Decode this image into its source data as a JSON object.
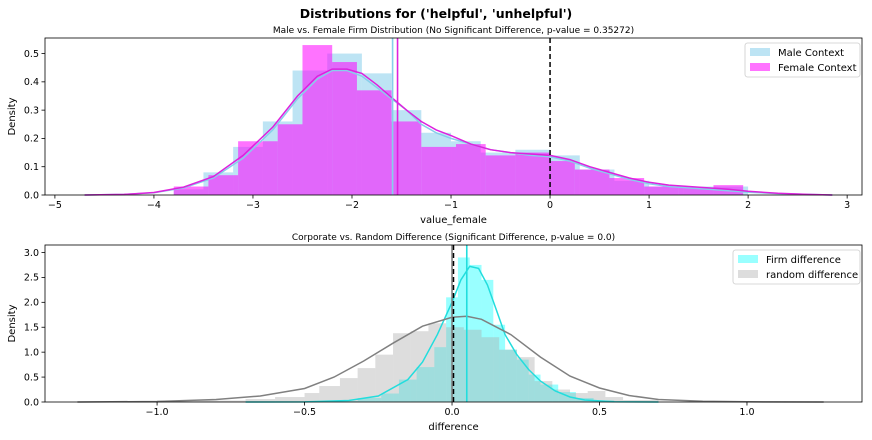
{
  "figure": {
    "suptitle": "Distributions for ('helpful', 'unhelpful')"
  },
  "chart_data": [
    {
      "type": "histogram",
      "title": "Male vs. Female Firm Distribution (No Significant Difference, p-value = 0.35272)",
      "xlabel": "value_female",
      "ylabel": "Density",
      "xlim": [
        -5.1,
        3.15
      ],
      "ylim": [
        0,
        0.555
      ],
      "xticks": [
        -5,
        -4,
        -3,
        -2,
        -1,
        0,
        1,
        2,
        3
      ],
      "xtick_labels": [
        "−5",
        "−4",
        "−3",
        "−2",
        "−1",
        "0",
        "1",
        "2",
        "3"
      ],
      "yticks": [
        0.0,
        0.1,
        0.2,
        0.3,
        0.4,
        0.5
      ],
      "ytick_labels": [
        "0.0",
        "0.1",
        "0.2",
        "0.3",
        "0.4",
        "0.5"
      ],
      "grid": false,
      "legend_position": "top-right",
      "series": [
        {
          "name": "Male Context",
          "color": "#87ceeb",
          "kde_color": "#87ceeb",
          "bins": [
            [
              -3.8,
              -3.5,
              0.02
            ],
            [
              -3.5,
              -3.2,
              0.08
            ],
            [
              -3.2,
              -2.9,
              0.17
            ],
            [
              -2.9,
              -2.6,
              0.26
            ],
            [
              -2.6,
              -2.25,
              0.44
            ],
            [
              -2.25,
              -1.9,
              0.5
            ],
            [
              -1.9,
              -1.6,
              0.43
            ],
            [
              -1.6,
              -1.3,
              0.3
            ],
            [
              -1.3,
              -1.0,
              0.22
            ],
            [
              -1.0,
              -0.7,
              0.19
            ],
            [
              -0.7,
              -0.35,
              0.15
            ],
            [
              -0.35,
              0.0,
              0.16
            ],
            [
              0.0,
              0.3,
              0.14
            ],
            [
              0.3,
              0.65,
              0.09
            ],
            [
              0.65,
              1.0,
              0.05
            ],
            [
              1.0,
              1.35,
              0.03
            ],
            [
              1.35,
              1.65,
              0.03
            ],
            [
              1.65,
              2.0,
              0.03
            ]
          ],
          "kde": [
            [
              -4.7,
              0.0
            ],
            [
              -4.3,
              0.002
            ],
            [
              -4.0,
              0.008
            ],
            [
              -3.7,
              0.025
            ],
            [
              -3.4,
              0.06
            ],
            [
              -3.1,
              0.13
            ],
            [
              -2.8,
              0.23
            ],
            [
              -2.55,
              0.34
            ],
            [
              -2.35,
              0.41
            ],
            [
              -2.2,
              0.44
            ],
            [
              -2.05,
              0.44
            ],
            [
              -1.9,
              0.42
            ],
            [
              -1.75,
              0.38
            ],
            [
              -1.6,
              0.34
            ],
            [
              -1.45,
              0.3
            ],
            [
              -1.3,
              0.25
            ],
            [
              -1.15,
              0.22
            ],
            [
              -1.0,
              0.2
            ],
            [
              -0.8,
              0.18
            ],
            [
              -0.6,
              0.16
            ],
            [
              -0.4,
              0.15
            ],
            [
              -0.2,
              0.14
            ],
            [
              0.0,
              0.135
            ],
            [
              0.2,
              0.12
            ],
            [
              0.4,
              0.095
            ],
            [
              0.6,
              0.075
            ],
            [
              0.8,
              0.055
            ],
            [
              1.0,
              0.04
            ],
            [
              1.2,
              0.03
            ],
            [
              1.4,
              0.025
            ],
            [
              1.6,
              0.02
            ],
            [
              1.8,
              0.015
            ],
            [
              2.0,
              0.01
            ],
            [
              2.3,
              0.005
            ],
            [
              2.6,
              0.002
            ],
            [
              2.85,
              0.0
            ]
          ],
          "mean": -1.59
        },
        {
          "name": "Female Context",
          "color": "#ff00ff",
          "kde_color": "#dd22dd",
          "bins": [
            [
              -3.8,
              -3.45,
              0.03
            ],
            [
              -3.45,
              -3.15,
              0.07
            ],
            [
              -3.15,
              -2.75,
              0.19
            ],
            [
              -2.75,
              -2.5,
              0.25
            ],
            [
              -2.5,
              -2.2,
              0.53
            ],
            [
              -2.2,
              -1.95,
              0.47
            ],
            [
              -1.95,
              -1.6,
              0.37
            ],
            [
              -1.6,
              -1.3,
              0.26
            ],
            [
              -1.3,
              -0.95,
              0.17
            ],
            [
              -0.95,
              -0.65,
              0.18
            ],
            [
              -0.65,
              -0.35,
              0.14
            ],
            [
              -0.35,
              0.0,
              0.15
            ],
            [
              0.0,
              0.25,
              0.12
            ],
            [
              0.25,
              0.6,
              0.09
            ],
            [
              0.6,
              0.95,
              0.06
            ],
            [
              0.95,
              1.3,
              0.03
            ],
            [
              1.3,
              1.65,
              0.025
            ],
            [
              1.65,
              1.95,
              0.035
            ]
          ],
          "kde": [
            [
              -4.7,
              0.0
            ],
            [
              -4.3,
              0.002
            ],
            [
              -4.0,
              0.009
            ],
            [
              -3.7,
              0.028
            ],
            [
              -3.4,
              0.065
            ],
            [
              -3.1,
              0.14
            ],
            [
              -2.8,
              0.24
            ],
            [
              -2.55,
              0.35
            ],
            [
              -2.35,
              0.42
            ],
            [
              -2.2,
              0.445
            ],
            [
              -2.05,
              0.445
            ],
            [
              -1.9,
              0.43
            ],
            [
              -1.75,
              0.39
            ],
            [
              -1.6,
              0.345
            ],
            [
              -1.45,
              0.3
            ],
            [
              -1.3,
              0.26
            ],
            [
              -1.15,
              0.23
            ],
            [
              -1.0,
              0.21
            ],
            [
              -0.8,
              0.18
            ],
            [
              -0.6,
              0.16
            ],
            [
              -0.4,
              0.15
            ],
            [
              -0.2,
              0.145
            ],
            [
              0.0,
              0.14
            ],
            [
              0.2,
              0.125
            ],
            [
              0.4,
              0.1
            ],
            [
              0.6,
              0.08
            ],
            [
              0.8,
              0.06
            ],
            [
              1.0,
              0.045
            ],
            [
              1.2,
              0.035
            ],
            [
              1.4,
              0.03
            ],
            [
              1.6,
              0.025
            ],
            [
              1.8,
              0.02
            ],
            [
              2.0,
              0.013
            ],
            [
              2.3,
              0.006
            ],
            [
              2.6,
              0.002
            ],
            [
              2.85,
              0.0
            ]
          ],
          "mean": -1.54
        }
      ],
      "reference_line": {
        "x": 0,
        "style": "dashed",
        "color": "#000000"
      }
    },
    {
      "type": "histogram",
      "title": "Corporate vs. Random Difference (Significant Difference, p-value = 0.0)",
      "xlabel": "difference",
      "ylabel": "Density",
      "xlim": [
        -1.38,
        1.39
      ],
      "ylim": [
        0,
        3.15
      ],
      "xticks": [
        -1.0,
        -0.5,
        0.0,
        0.5,
        1.0
      ],
      "xtick_labels": [
        "−1.0",
        "−0.5",
        "0.0",
        "0.5",
        "1.0"
      ],
      "yticks": [
        0.0,
        0.5,
        1.0,
        1.5,
        2.0,
        2.5,
        3.0
      ],
      "ytick_labels": [
        "0.0",
        "0.5",
        "1.0",
        "1.5",
        "2.0",
        "2.5",
        "3.0"
      ],
      "grid": false,
      "legend_position": "top-right",
      "series": [
        {
          "name": "Firm difference",
          "color": "#00ffff",
          "kde_color": "#22dddd",
          "bins": [
            [
              -0.4,
              -0.32,
              0.02
            ],
            [
              -0.32,
              -0.24,
              0.08
            ],
            [
              -0.24,
              -0.18,
              0.17
            ],
            [
              -0.18,
              -0.12,
              0.45
            ],
            [
              -0.12,
              -0.06,
              0.7
            ],
            [
              -0.06,
              -0.02,
              1.1
            ],
            [
              -0.02,
              0.02,
              2.1
            ],
            [
              0.02,
              0.06,
              2.9
            ],
            [
              0.06,
              0.1,
              2.75
            ],
            [
              0.1,
              0.14,
              2.45
            ],
            [
              0.14,
              0.18,
              1.55
            ],
            [
              0.18,
              0.22,
              1.05
            ],
            [
              0.22,
              0.26,
              0.85
            ],
            [
              0.26,
              0.3,
              0.55
            ],
            [
              0.3,
              0.36,
              0.35
            ],
            [
              0.36,
              0.42,
              0.2
            ],
            [
              0.42,
              0.48,
              0.08
            ],
            [
              0.48,
              0.55,
              0.03
            ]
          ],
          "kde": [
            [
              -0.7,
              0.0
            ],
            [
              -0.5,
              0.003
            ],
            [
              -0.35,
              0.03
            ],
            [
              -0.25,
              0.12
            ],
            [
              -0.15,
              0.45
            ],
            [
              -0.1,
              0.8
            ],
            [
              -0.05,
              1.35
            ],
            [
              0.0,
              2.0
            ],
            [
              0.03,
              2.45
            ],
            [
              0.06,
              2.72
            ],
            [
              0.09,
              2.68
            ],
            [
              0.12,
              2.35
            ],
            [
              0.15,
              1.85
            ],
            [
              0.18,
              1.35
            ],
            [
              0.22,
              0.95
            ],
            [
              0.26,
              0.65
            ],
            [
              0.3,
              0.42
            ],
            [
              0.35,
              0.22
            ],
            [
              0.4,
              0.1
            ],
            [
              0.45,
              0.04
            ],
            [
              0.55,
              0.005
            ],
            [
              0.7,
              0.0
            ]
          ],
          "mean_line_x": 0.05
        },
        {
          "name": "random difference",
          "color": "#aaaaaa",
          "kde_color": "#808080",
          "bins": [
            [
              -1.0,
              -0.7,
              0.03
            ],
            [
              -0.7,
              -0.6,
              0.06
            ],
            [
              -0.6,
              -0.5,
              0.1
            ],
            [
              -0.5,
              -0.45,
              0.18
            ],
            [
              -0.45,
              -0.38,
              0.32
            ],
            [
              -0.38,
              -0.32,
              0.48
            ],
            [
              -0.32,
              -0.26,
              0.68
            ],
            [
              -0.26,
              -0.2,
              0.95
            ],
            [
              -0.2,
              -0.14,
              1.38
            ],
            [
              -0.14,
              -0.08,
              1.42
            ],
            [
              -0.08,
              -0.02,
              1.58
            ],
            [
              -0.02,
              0.04,
              1.5
            ],
            [
              0.04,
              0.1,
              1.45
            ],
            [
              0.1,
              0.16,
              1.3
            ],
            [
              0.16,
              0.22,
              1.05
            ],
            [
              0.22,
              0.28,
              0.9
            ],
            [
              0.28,
              0.34,
              0.42
            ],
            [
              0.34,
              0.4,
              0.25
            ],
            [
              0.4,
              0.46,
              0.18
            ],
            [
              0.46,
              0.52,
              0.22
            ],
            [
              0.52,
              0.58,
              0.1
            ],
            [
              0.58,
              0.7,
              0.04
            ]
          ],
          "kde": [
            [
              -1.27,
              0.0
            ],
            [
              -1.0,
              0.01
            ],
            [
              -0.8,
              0.05
            ],
            [
              -0.65,
              0.12
            ],
            [
              -0.5,
              0.27
            ],
            [
              -0.4,
              0.5
            ],
            [
              -0.3,
              0.82
            ],
            [
              -0.2,
              1.18
            ],
            [
              -0.1,
              1.52
            ],
            [
              0.0,
              1.7
            ],
            [
              0.05,
              1.72
            ],
            [
              0.1,
              1.66
            ],
            [
              0.2,
              1.35
            ],
            [
              0.3,
              0.9
            ],
            [
              0.4,
              0.52
            ],
            [
              0.5,
              0.28
            ],
            [
              0.6,
              0.13
            ],
            [
              0.7,
              0.05
            ],
            [
              0.85,
              0.015
            ],
            [
              1.0,
              0.004
            ],
            [
              1.26,
              0.0
            ]
          ],
          "mean_line_x": 0.0
        }
      ],
      "reference_line": {
        "x": 0.005,
        "style": "dashed",
        "color": "#000000"
      }
    }
  ]
}
